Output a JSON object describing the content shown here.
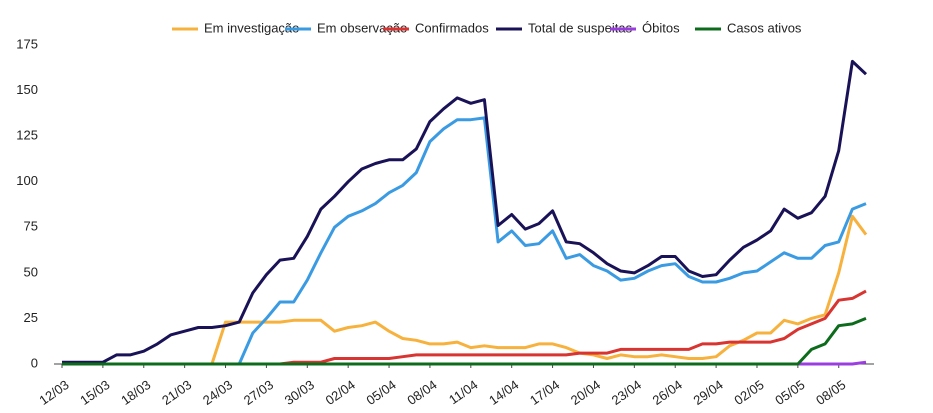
{
  "chart_data": {
    "type": "line",
    "categories": [
      "12/03",
      null,
      null,
      "15/03",
      null,
      null,
      "18/03",
      null,
      null,
      "21/03",
      null,
      null,
      "24/03",
      null,
      null,
      "27/03",
      null,
      null,
      "30/03",
      null,
      null,
      "02/04",
      null,
      null,
      "05/04",
      null,
      null,
      "08/04",
      null,
      null,
      "11/04",
      null,
      null,
      "14/04",
      null,
      null,
      "17/04",
      null,
      null,
      "20/04",
      null,
      null,
      "23/04",
      null,
      null,
      "26/04",
      null,
      null,
      "29/04",
      null,
      null,
      "02/05",
      null,
      null,
      "05/05",
      null,
      null,
      "08/05",
      null,
      null
    ],
    "series": [
      {
        "name": "Em investigação",
        "color": "#f7b13d",
        "values": [
          0,
          0,
          0,
          0,
          0,
          0,
          0,
          0,
          0,
          0,
          0,
          0,
          23,
          23,
          23,
          23,
          23,
          24,
          24,
          24,
          18,
          20,
          21,
          23,
          18,
          14,
          13,
          11,
          11,
          12,
          9,
          10,
          9,
          9,
          9,
          11,
          11,
          9,
          6,
          5,
          3,
          5,
          4,
          4,
          5,
          4,
          3,
          3,
          4,
          10,
          13,
          17,
          17,
          24,
          22,
          25,
          27,
          50,
          81,
          71
        ]
      },
      {
        "name": "Em observação",
        "color": "#3a9be3",
        "values": [
          0,
          0,
          0,
          0,
          0,
          0,
          0,
          0,
          0,
          0,
          0,
          0,
          0,
          0,
          17,
          25,
          34,
          34,
          46,
          61,
          75,
          81,
          84,
          88,
          94,
          98,
          105,
          122,
          129,
          134,
          134,
          135,
          67,
          73,
          65,
          66,
          73,
          58,
          60,
          54,
          51,
          46,
          47,
          51,
          54,
          55,
          48,
          45,
          45,
          47,
          50,
          51,
          56,
          61,
          58,
          58,
          65,
          67,
          85,
          88
        ]
      },
      {
        "name": "Confirmados",
        "color": "#d83431",
        "values": [
          0,
          0,
          0,
          0,
          0,
          0,
          0,
          0,
          0,
          0,
          0,
          0,
          0,
          0,
          0,
          0,
          0,
          1,
          1,
          1,
          3,
          3,
          3,
          3,
          3,
          4,
          5,
          5,
          5,
          5,
          5,
          5,
          5,
          5,
          5,
          5,
          5,
          5,
          6,
          6,
          6,
          8,
          8,
          8,
          8,
          8,
          8,
          11,
          11,
          12,
          12,
          12,
          12,
          14,
          19,
          22,
          25,
          35,
          36,
          40
        ]
      },
      {
        "name": "Total de suspeitas",
        "color": "#1a1257",
        "values": [
          1,
          1,
          1,
          1,
          5,
          5,
          7,
          11,
          16,
          18,
          20,
          20,
          21,
          23,
          39,
          49,
          57,
          58,
          70,
          85,
          92,
          100,
          107,
          110,
          112,
          112,
          118,
          133,
          140,
          146,
          143,
          145,
          76,
          82,
          74,
          77,
          84,
          67,
          66,
          61,
          55,
          51,
          50,
          54,
          59,
          59,
          51,
          48,
          49,
          57,
          64,
          68,
          73,
          85,
          80,
          83,
          92,
          117,
          166,
          159
        ]
      },
      {
        "name": "Óbitos",
        "color": "#9b3ee0",
        "values": [
          0,
          0,
          0,
          0,
          0,
          0,
          0,
          0,
          0,
          0,
          0,
          0,
          0,
          0,
          0,
          0,
          0,
          0,
          0,
          0,
          0,
          0,
          0,
          0,
          0,
          0,
          0,
          0,
          0,
          0,
          0,
          0,
          0,
          0,
          0,
          0,
          0,
          0,
          0,
          0,
          0,
          0,
          0,
          0,
          0,
          0,
          0,
          0,
          0,
          0,
          0,
          0,
          0,
          0,
          0,
          0,
          0,
          0,
          0,
          1
        ]
      },
      {
        "name": "Casos ativos",
        "color": "#0d6b1c",
        "values": [
          0,
          0,
          0,
          0,
          0,
          0,
          0,
          0,
          0,
          0,
          0,
          0,
          0,
          0,
          0,
          0,
          0,
          0,
          0,
          0,
          0,
          0,
          0,
          0,
          0,
          0,
          0,
          0,
          0,
          0,
          0,
          0,
          0,
          0,
          0,
          0,
          0,
          0,
          0,
          0,
          0,
          0,
          0,
          0,
          0,
          0,
          0,
          0,
          0,
          0,
          0,
          0,
          0,
          0,
          0,
          8,
          11,
          21,
          22,
          25
        ]
      }
    ],
    "ylim": [
      0,
      175
    ],
    "yticks": [
      0,
      25,
      50,
      75,
      100,
      125,
      150,
      175
    ]
  }
}
